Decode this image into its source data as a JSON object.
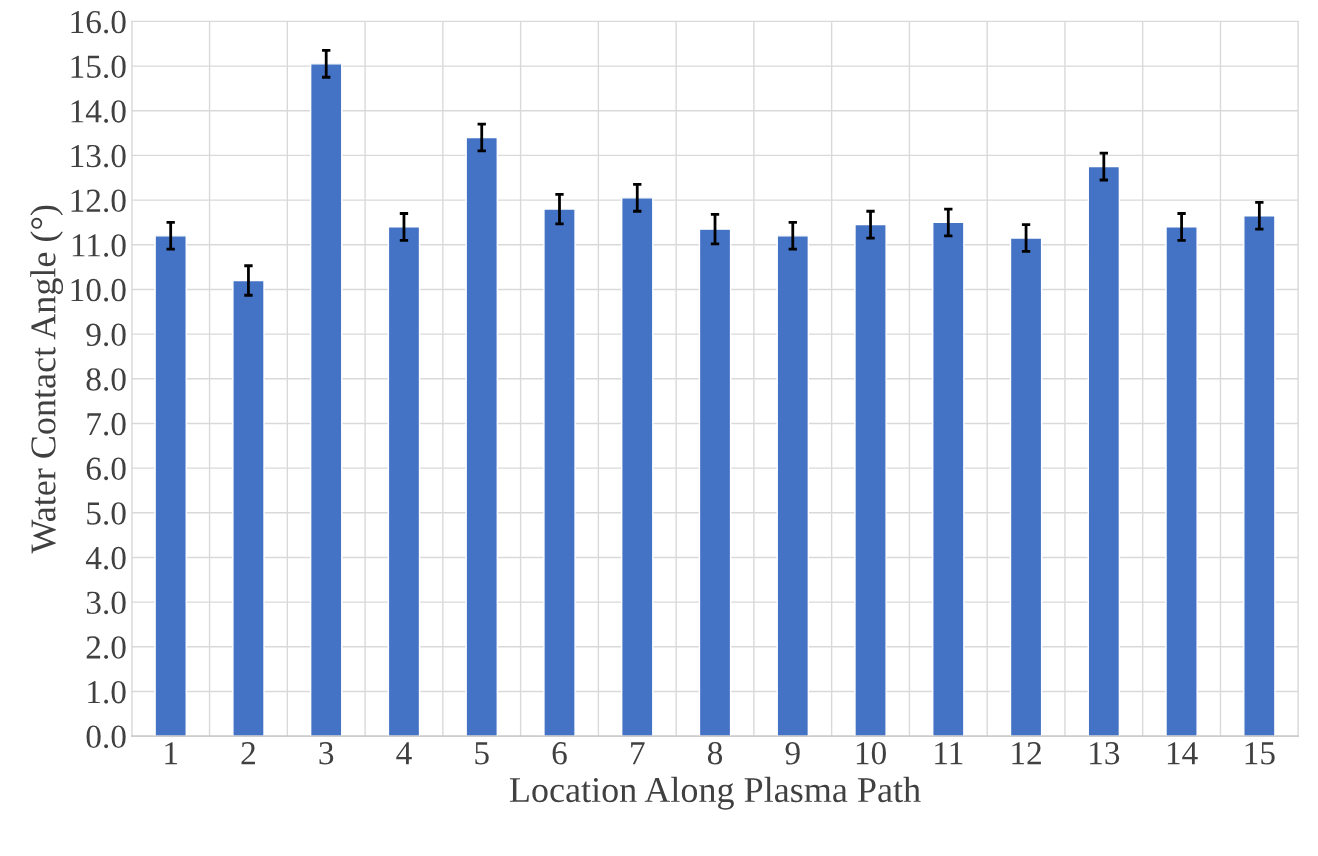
{
  "chart_data": {
    "type": "bar",
    "xlabel": "Location Along Plasma Path",
    "ylabel": "Water Contact Angle (°)",
    "categories": [
      "1",
      "2",
      "3",
      "4",
      "5",
      "6",
      "7",
      "8",
      "9",
      "10",
      "11",
      "12",
      "13",
      "14",
      "15"
    ],
    "values": [
      11.2,
      10.2,
      15.05,
      11.4,
      13.4,
      11.8,
      12.05,
      11.35,
      11.2,
      11.45,
      11.5,
      11.15,
      12.75,
      11.4,
      11.65
    ],
    "errors": [
      0.3,
      0.33,
      0.3,
      0.3,
      0.3,
      0.33,
      0.3,
      0.33,
      0.3,
      0.3,
      0.3,
      0.3,
      0.3,
      0.3,
      0.3
    ],
    "color": "#4472c4",
    "ylim": [
      0,
      16
    ],
    "yticks": [
      {
        "value": 0,
        "label": "0.0"
      },
      {
        "value": 1,
        "label": "1.0"
      },
      {
        "value": 2,
        "label": "2.0"
      },
      {
        "value": 3,
        "label": "3.0"
      },
      {
        "value": 4,
        "label": "4.0"
      },
      {
        "value": 5,
        "label": "5.0"
      },
      {
        "value": 6,
        "label": "6.0"
      },
      {
        "value": 7,
        "label": "7.0"
      },
      {
        "value": 8,
        "label": "8.0"
      },
      {
        "value": 9,
        "label": "9.0"
      },
      {
        "value": 10,
        "label": "10.0"
      },
      {
        "value": 11,
        "label": "11.0"
      },
      {
        "value": 12,
        "label": "12.0"
      },
      {
        "value": 13,
        "label": "13.0"
      },
      {
        "value": 14,
        "label": "14.0"
      },
      {
        "value": 15,
        "label": "15.0"
      },
      {
        "value": 16,
        "label": "16.0"
      }
    ],
    "grid": true
  }
}
